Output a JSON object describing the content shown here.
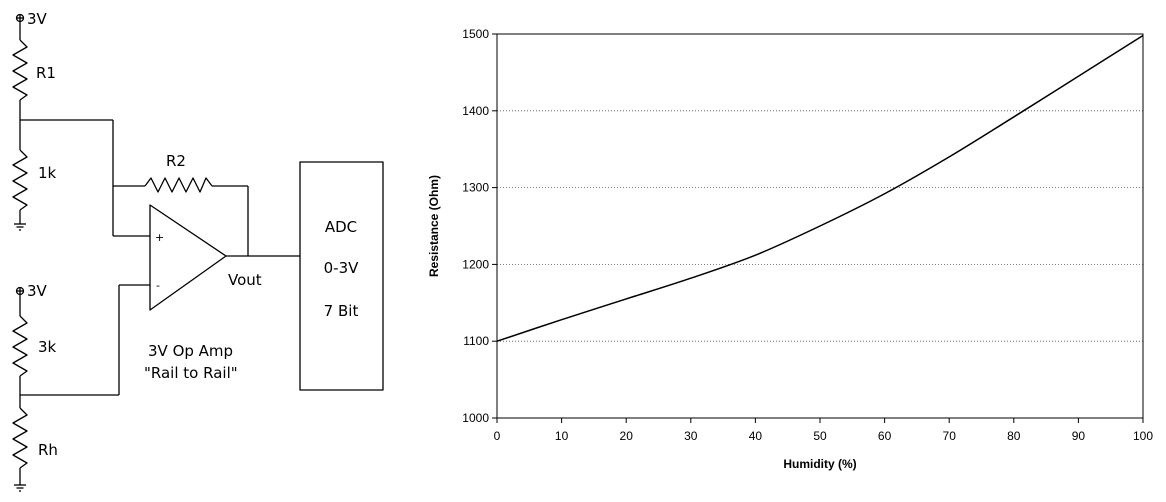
{
  "circuit": {
    "supply_top": "3V",
    "r1": "R1",
    "r_1k": "1k",
    "r2": "R2",
    "supply_bottom": "3V",
    "r_3k": "3k",
    "rh": "Rh",
    "plus": "+",
    "minus": "-",
    "vout": "Vout",
    "opamp_line1": "3V Op Amp",
    "opamp_line2": "\"Rail to Rail\"",
    "adc_line1": "ADC",
    "adc_line2": "0-3V",
    "adc_line3": "7 Bit"
  },
  "chart_data": {
    "type": "line",
    "title": "",
    "xlabel": "Humidity (%)",
    "ylabel": "Resistance (Ohm)",
    "xlim": [
      0,
      100
    ],
    "ylim": [
      1000,
      1500
    ],
    "x_ticks": [
      0,
      10,
      20,
      30,
      40,
      50,
      60,
      70,
      80,
      90,
      100
    ],
    "y_ticks": [
      1000,
      1100,
      1200,
      1300,
      1400,
      1500
    ],
    "grid": "horizontal dotted",
    "series": [
      {
        "x": [
          0,
          10,
          20,
          30,
          40,
          50,
          60,
          70,
          80,
          90,
          100
        ],
        "y": [
          1100,
          1128,
          1155,
          1182,
          1212,
          1250,
          1292,
          1340,
          1392,
          1445,
          1498
        ]
      }
    ]
  }
}
